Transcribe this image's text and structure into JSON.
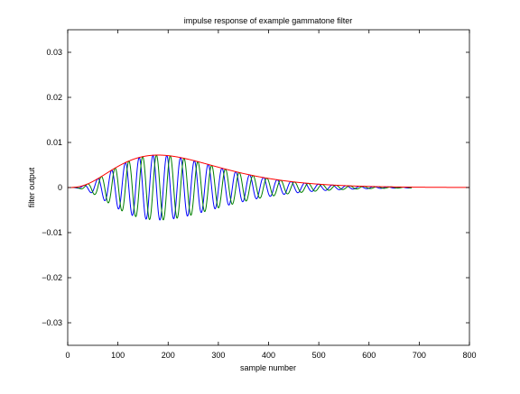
{
  "chart_data": {
    "type": "line",
    "title": "impulse response of example gammatone filter",
    "xlabel": "sample number",
    "ylabel": "filter output",
    "xlim": [
      0,
      800
    ],
    "ylim": [
      -0.035,
      0.035
    ],
    "xticks": [
      0,
      100,
      200,
      300,
      400,
      500,
      600,
      700,
      800
    ],
    "xtick_labels": [
      "0",
      "100",
      "200",
      "300",
      "400",
      "500",
      "600",
      "700",
      "800"
    ],
    "yticks": [
      -0.03,
      -0.02,
      -0.01,
      0,
      0.01,
      0.02,
      0.03
    ],
    "ytick_labels": [
      "−0.03",
      "−0.02",
      "−0.01",
      "0",
      "0.01",
      "0.02",
      "0.03"
    ],
    "grid": false,
    "legend": "none",
    "series": [
      {
        "color": "#0000ff",
        "description": "real part of impulse response",
        "samples": [
          0,
          685
        ],
        "peak_envelope": 0.0072,
        "peak_sample": 180,
        "cycle_length_samples": 27.5
      },
      {
        "color": "#008000",
        "description": "imaginary part of impulse response",
        "samples": [
          0,
          685
        ],
        "peak_envelope": 0.0072,
        "peak_sample": 180,
        "cycle_length_samples": 27.5
      },
      {
        "color": "#ff0000",
        "description": "envelope",
        "samples": [
          0,
          800
        ],
        "peak_envelope": 0.0072,
        "peak_sample": 180
      }
    ]
  }
}
